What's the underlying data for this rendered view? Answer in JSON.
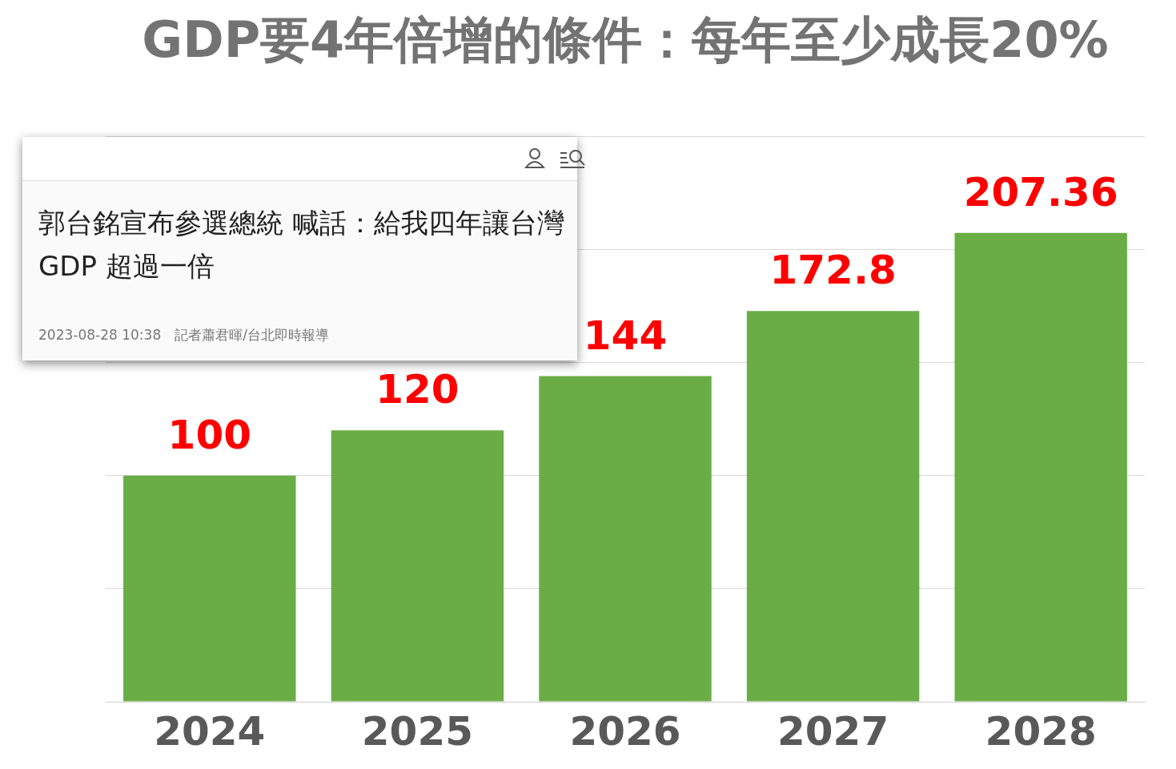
{
  "chart_data": {
    "type": "bar",
    "title": "GDP要4年倍增的條件：每年至少成長20%",
    "categories": [
      "2024",
      "2025",
      "2026",
      "2027",
      "2028"
    ],
    "values": [
      100,
      120,
      144,
      172.8,
      207.36
    ],
    "color": "#6aad45",
    "ylim": [
      0,
      250
    ],
    "yticks": [
      {
        "value": 0,
        "label": null
      },
      {
        "value": 50,
        "label": null
      },
      {
        "value": 100,
        "label": null
      },
      {
        "value": 150,
        "label": null
      },
      {
        "value": 200,
        "label": null
      },
      {
        "value": 250,
        "label": null
      }
    ],
    "grid": "y",
    "tick_labels": "x",
    "legend": false,
    "data_labels": true,
    "annotations": [
      "郭台銘宣布參選總統 喊話：給我四年讓台灣 GDP 超過一倍",
      "2023-08-28 10:38",
      "記者蕭君暉/台北即時報導"
    ]
  }
}
